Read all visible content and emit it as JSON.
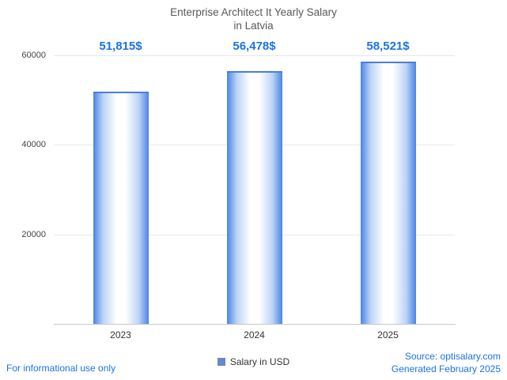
{
  "title": {
    "line1": "Enterprise Architect It Yearly Salary",
    "line2": "in Latvia"
  },
  "chart_data": {
    "type": "bar",
    "title": "Enterprise Architect It Yearly Salary in Latvia",
    "categories": [
      "2023",
      "2024",
      "2025"
    ],
    "series": [
      {
        "name": "Salary in USD",
        "values": [
          51815,
          56478,
          58521
        ]
      }
    ],
    "value_labels": [
      "51,815$",
      "56,478$",
      "58,521$"
    ],
    "xlabel": "",
    "ylabel": "",
    "ylim": [
      0,
      60000
    ],
    "yticks": [
      20000,
      40000,
      60000
    ],
    "ytick_labels": [
      "20000",
      "40000",
      "60000"
    ],
    "grid": true,
    "legend_position": "bottom",
    "legend": [
      {
        "label": "Salary in USD",
        "color": "#6688cc"
      }
    ],
    "bar_colors": {
      "edge": "#4a84e6",
      "mid": "#bdd4f7",
      "center": "#ffffff",
      "cap": "#4b7ddd"
    },
    "value_label_color": "#1a73e8"
  },
  "footer": {
    "left": "For informational use only",
    "right_line1": "Source: optisalary.com",
    "right_line2": "Generated February 2025"
  }
}
